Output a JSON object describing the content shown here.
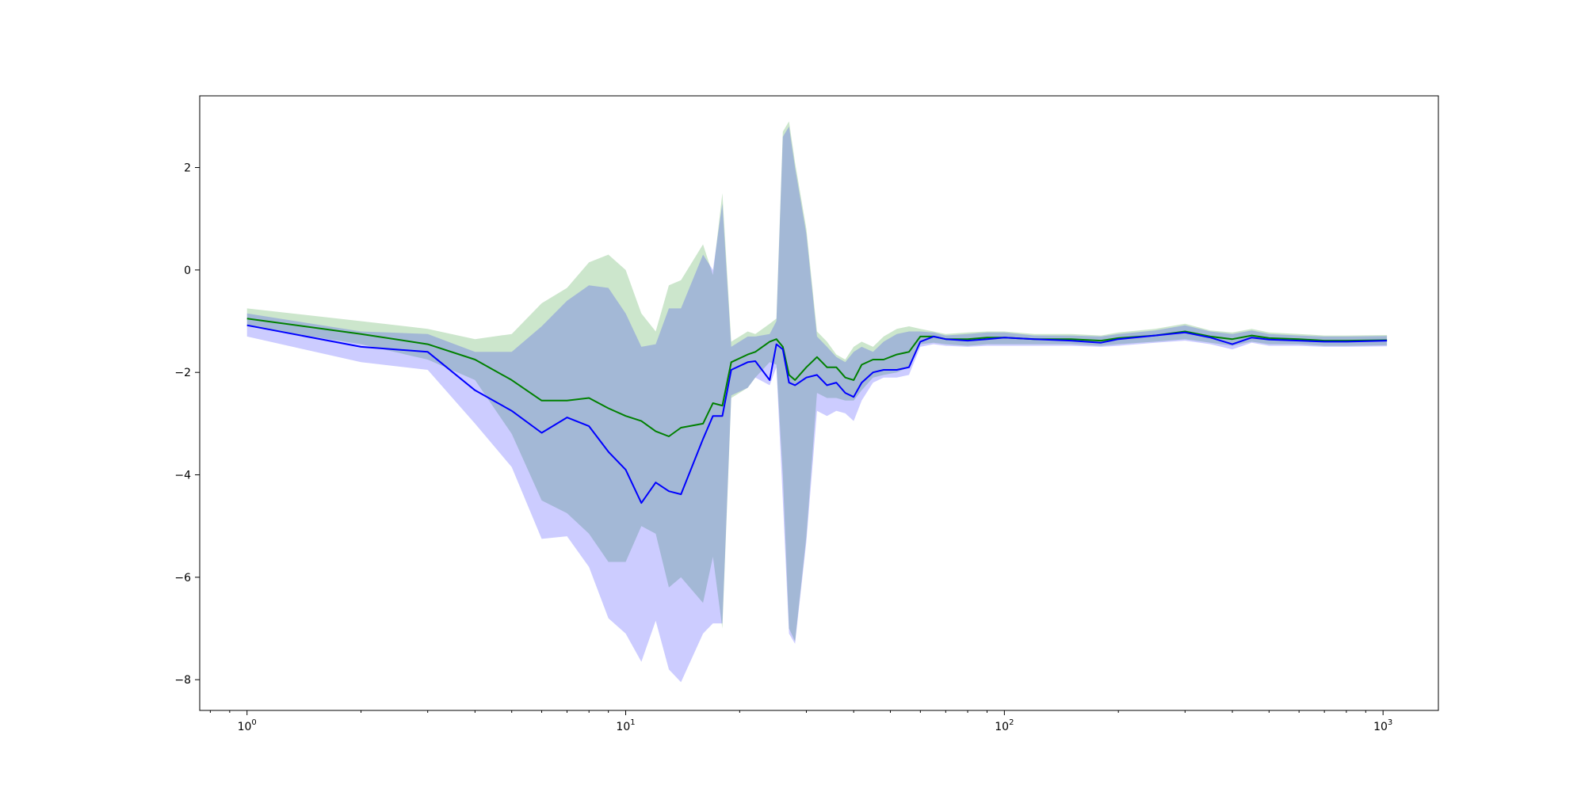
{
  "chart_data": {
    "type": "line",
    "title": "",
    "xlabel": "",
    "ylabel": "",
    "xscale": "log",
    "xlim": [
      0.75,
      1400
    ],
    "ylim": [
      -8.6,
      3.4
    ],
    "grid": false,
    "legend": "none",
    "x_ticks": [
      {
        "base": "10",
        "exp": "0",
        "value": 1
      },
      {
        "base": "10",
        "exp": "1",
        "value": 10
      },
      {
        "base": "10",
        "exp": "2",
        "value": 100
      },
      {
        "base": "10",
        "exp": "3",
        "value": 1000
      }
    ],
    "y_ticks": [
      {
        "value": 2,
        "label": "2"
      },
      {
        "value": 0,
        "label": "0"
      },
      {
        "value": -2,
        "label": "−2"
      },
      {
        "value": -4,
        "label": "−4"
      },
      {
        "value": -6,
        "label": "−6"
      },
      {
        "value": -8,
        "label": "−8"
      }
    ],
    "series": [
      {
        "color": "#008000",
        "band_color": "#008000",
        "band_opacity": 0.2,
        "x": [
          1,
          2,
          3,
          4,
          5,
          6,
          7,
          8,
          9,
          10,
          11,
          12,
          13,
          14,
          16,
          17,
          18,
          19,
          21,
          22,
          24,
          25,
          26,
          27,
          28,
          30,
          32,
          34,
          36,
          38,
          40,
          42,
          45,
          48,
          52,
          56,
          60,
          65,
          70,
          80,
          90,
          100,
          120,
          150,
          180,
          200,
          250,
          300,
          350,
          400,
          450,
          500,
          600,
          700,
          800,
          1024
        ],
        "y": [
          -0.95,
          -1.25,
          -1.45,
          -1.75,
          -2.15,
          -2.55,
          -2.55,
          -2.5,
          -2.7,
          -2.85,
          -2.95,
          -3.15,
          -3.25,
          -3.08,
          -3.0,
          -2.6,
          -2.65,
          -1.8,
          -1.65,
          -1.6,
          -1.4,
          -1.35,
          -1.5,
          -2.05,
          -2.15,
          -1.9,
          -1.7,
          -1.9,
          -1.9,
          -2.1,
          -2.15,
          -1.85,
          -1.75,
          -1.75,
          -1.65,
          -1.6,
          -1.3,
          -1.3,
          -1.35,
          -1.35,
          -1.32,
          -1.32,
          -1.35,
          -1.35,
          -1.38,
          -1.33,
          -1.28,
          -1.2,
          -1.3,
          -1.35,
          -1.28,
          -1.33,
          -1.35,
          -1.38,
          -1.38,
          -1.37
        ],
        "upper": [
          -0.75,
          -1.0,
          -1.15,
          -1.35,
          -1.25,
          -0.65,
          -0.35,
          0.15,
          0.3,
          0.0,
          -0.85,
          -1.2,
          -0.3,
          -0.2,
          0.5,
          -0.1,
          1.5,
          -1.4,
          -1.2,
          -1.25,
          -1.05,
          -0.95,
          2.7,
          2.9,
          2.1,
          0.8,
          -1.2,
          -1.4,
          -1.65,
          -1.75,
          -1.5,
          -1.4,
          -1.5,
          -1.3,
          -1.15,
          -1.1,
          -1.15,
          -1.2,
          -1.25,
          -1.22,
          -1.2,
          -1.2,
          -1.25,
          -1.25,
          -1.28,
          -1.22,
          -1.15,
          -1.05,
          -1.18,
          -1.22,
          -1.15,
          -1.22,
          -1.25,
          -1.28,
          -1.28,
          -1.27
        ],
        "lower": [
          -1.1,
          -1.45,
          -1.75,
          -2.15,
          -3.2,
          -4.5,
          -4.75,
          -5.15,
          -5.7,
          -5.7,
          -5.0,
          -5.15,
          -6.2,
          -6.0,
          -6.5,
          -5.6,
          -7.0,
          -2.5,
          -2.3,
          -2.1,
          -1.8,
          -1.85,
          -4.0,
          -7.0,
          -7.25,
          -5.2,
          -2.4,
          -2.5,
          -2.5,
          -2.55,
          -2.55,
          -2.35,
          -2.1,
          -2.05,
          -2.0,
          -1.9,
          -1.45,
          -1.42,
          -1.45,
          -1.48,
          -1.45,
          -1.45,
          -1.45,
          -1.45,
          -1.48,
          -1.45,
          -1.4,
          -1.35,
          -1.42,
          -1.48,
          -1.4,
          -1.45,
          -1.45,
          -1.48,
          -1.48,
          -1.47
        ]
      },
      {
        "color": "#0000ff",
        "band_color": "#0000ff",
        "band_opacity": 0.2,
        "x": [
          1,
          2,
          3,
          4,
          5,
          6,
          7,
          8,
          9,
          10,
          11,
          12,
          13,
          14,
          16,
          17,
          18,
          19,
          21,
          22,
          24,
          25,
          26,
          27,
          28,
          30,
          32,
          34,
          36,
          38,
          40,
          42,
          45,
          48,
          52,
          56,
          60,
          65,
          70,
          80,
          90,
          100,
          120,
          150,
          180,
          200,
          250,
          300,
          350,
          400,
          450,
          500,
          600,
          700,
          800,
          1024
        ],
        "y": [
          -1.08,
          -1.5,
          -1.6,
          -2.35,
          -2.75,
          -3.18,
          -2.88,
          -3.05,
          -3.55,
          -3.9,
          -4.55,
          -4.15,
          -4.32,
          -4.38,
          -3.3,
          -2.85,
          -2.85,
          -1.95,
          -1.8,
          -1.78,
          -2.15,
          -1.45,
          -1.55,
          -2.2,
          -2.25,
          -2.1,
          -2.05,
          -2.25,
          -2.2,
          -2.4,
          -2.48,
          -2.2,
          -2.0,
          -1.95,
          -1.95,
          -1.9,
          -1.4,
          -1.3,
          -1.35,
          -1.38,
          -1.35,
          -1.32,
          -1.35,
          -1.38,
          -1.42,
          -1.35,
          -1.28,
          -1.22,
          -1.32,
          -1.45,
          -1.32,
          -1.36,
          -1.38,
          -1.4,
          -1.4,
          -1.38
        ],
        "upper": [
          -0.85,
          -1.2,
          -1.25,
          -1.6,
          -1.6,
          -1.1,
          -0.6,
          -0.3,
          -0.35,
          -0.85,
          -1.5,
          -1.45,
          -0.75,
          -0.75,
          0.3,
          0.0,
          1.3,
          -1.5,
          -1.3,
          -1.3,
          -1.25,
          -1.0,
          2.6,
          2.8,
          2.0,
          0.7,
          -1.3,
          -1.5,
          -1.7,
          -1.8,
          -1.6,
          -1.5,
          -1.6,
          -1.4,
          -1.25,
          -1.2,
          -1.2,
          -1.22,
          -1.28,
          -1.25,
          -1.22,
          -1.22,
          -1.28,
          -1.28,
          -1.3,
          -1.25,
          -1.18,
          -1.08,
          -1.2,
          -1.25,
          -1.18,
          -1.25,
          -1.28,
          -1.3,
          -1.3,
          -1.29
        ],
        "lower": [
          -1.3,
          -1.8,
          -1.95,
          -3.0,
          -3.85,
          -5.25,
          -5.2,
          -5.8,
          -6.8,
          -7.1,
          -7.65,
          -6.85,
          -7.8,
          -8.05,
          -7.1,
          -6.9,
          -6.9,
          -2.45,
          -2.3,
          -2.1,
          -2.25,
          -1.9,
          -4.5,
          -7.1,
          -7.3,
          -5.3,
          -2.75,
          -2.85,
          -2.75,
          -2.8,
          -2.95,
          -2.55,
          -2.2,
          -2.1,
          -2.1,
          -2.05,
          -1.5,
          -1.45,
          -1.48,
          -1.5,
          -1.48,
          -1.48,
          -1.48,
          -1.48,
          -1.5,
          -1.48,
          -1.42,
          -1.38,
          -1.45,
          -1.55,
          -1.42,
          -1.48,
          -1.48,
          -1.5,
          -1.5,
          -1.49
        ]
      }
    ]
  }
}
